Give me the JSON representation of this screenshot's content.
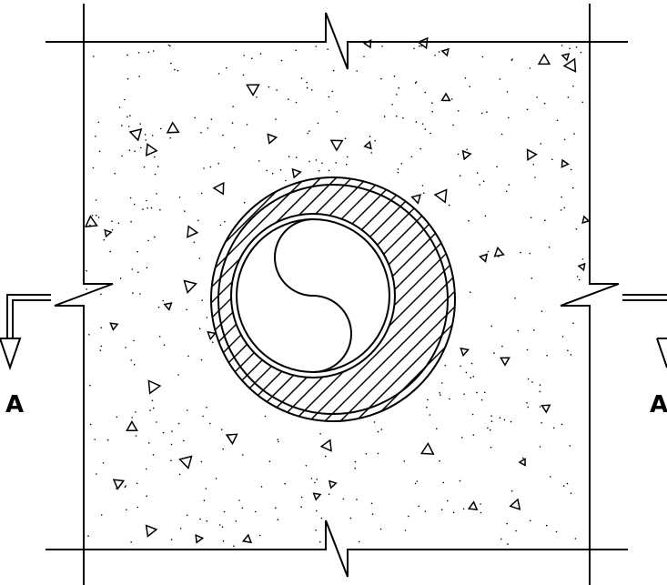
{
  "section": {
    "left_label": "A",
    "right_label": "A"
  }
}
